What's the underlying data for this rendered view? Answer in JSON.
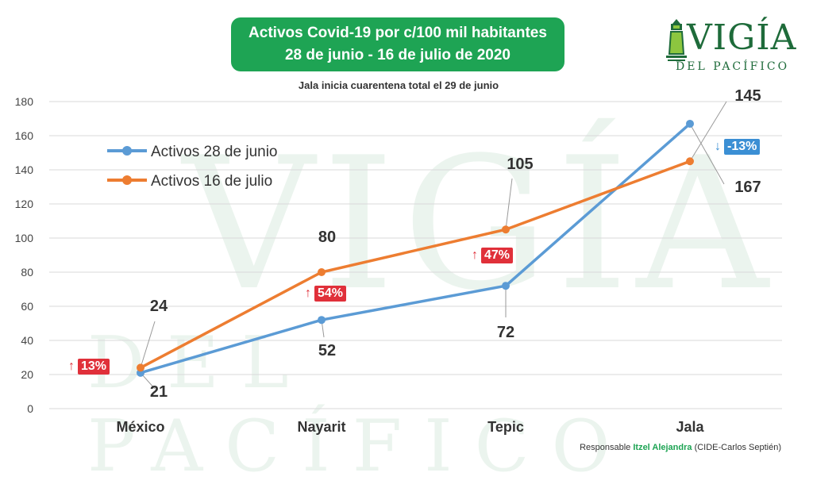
{
  "title_lines": [
    "Activos Covid-19 por c/100 mil habitantes",
    "28 de junio - 16 de julio de 2020"
  ],
  "subtitle": "Jala inicia cuarentena total el 29 de junio",
  "logo": {
    "main": "VIGÍA",
    "sub": "DEL PACÍFICO"
  },
  "credit": {
    "prefix": "Responsable",
    "name": "Itzel Alejandra",
    "suffix": "(CIDE-Carlos Septién)"
  },
  "badges": [
    {
      "arrow": "↑",
      "text": "13%",
      "color": "#e0303a"
    },
    {
      "arrow": "↑",
      "text": "54%",
      "color": "#e0303a"
    },
    {
      "arrow": "↑",
      "text": "47%",
      "color": "#e0303a"
    },
    {
      "arrow": "↓",
      "text": "-13%",
      "color": "#3b8fd4"
    }
  ],
  "chart_data": {
    "type": "line",
    "categories": [
      "México",
      "Nayarit",
      "Tepic",
      "Jala"
    ],
    "series": [
      {
        "name": "Activos 28 de junio",
        "values": [
          21,
          52,
          72,
          167
        ],
        "color": "#5b9bd5"
      },
      {
        "name": "Activos 16 de julio",
        "values": [
          24,
          80,
          105,
          145
        ],
        "color": "#ed7d31"
      }
    ],
    "yticks": [
      0,
      20,
      40,
      60,
      80,
      100,
      120,
      140,
      160,
      180
    ],
    "ylim": [
      0,
      180
    ],
    "legend": "top-left"
  }
}
